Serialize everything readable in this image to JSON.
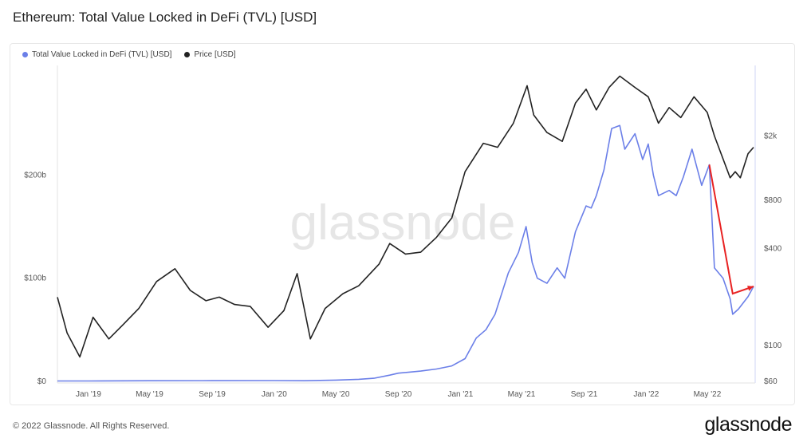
{
  "header": {
    "title": "Ethereum: Total Value Locked in DeFi (TVL) [USD]"
  },
  "footer": {
    "copyright": "© 2022 Glassnode. All Rights Reserved.",
    "logo": "glassnode"
  },
  "watermark": "glassnode",
  "colors": {
    "tvl": "#6b7fe8",
    "price": "#222222",
    "annotation": "#e82222",
    "watermark": "#e6e6e6"
  },
  "chart_data": {
    "type": "line",
    "title": "Ethereum: Total Value Locked in DeFi (TVL) [USD]",
    "legend_position": "top-left",
    "grid": false,
    "x_ticks": [
      "Jan '19",
      "May '19",
      "Sep '19",
      "Jan '20",
      "May '20",
      "Sep '20",
      "Jan '21",
      "May '21",
      "Sep '21",
      "Jan '22",
      "May '22"
    ],
    "x_range": [
      "2018-11-01",
      "2022-07-31"
    ],
    "y_left": {
      "scale": "linear",
      "range": [
        0,
        300
      ],
      "ticks": [
        {
          "v": 0,
          "label": "$0"
        },
        {
          "v": 100,
          "label": "$100b"
        },
        {
          "v": 200,
          "label": "$200b"
        }
      ]
    },
    "y_right": {
      "scale": "log",
      "range": [
        60,
        5000
      ],
      "ticks": [
        {
          "v": 60,
          "label": "$60"
        },
        {
          "v": 100,
          "label": "$100"
        },
        {
          "v": 400,
          "label": "$400"
        },
        {
          "v": 800,
          "label": "$800"
        },
        {
          "v": 2000,
          "label": "$2k"
        }
      ]
    },
    "series": [
      {
        "name": "Total Value Locked in DeFi (TVL) [USD]",
        "axis": "left",
        "points": [
          [
            "2018-11-01",
            0.4
          ],
          [
            "2019-01-01",
            0.4
          ],
          [
            "2019-05-01",
            0.6
          ],
          [
            "2019-09-01",
            0.7
          ],
          [
            "2020-01-01",
            0.8
          ],
          [
            "2020-03-01",
            0.6
          ],
          [
            "2020-05-01",
            1.2
          ],
          [
            "2020-06-15",
            2
          ],
          [
            "2020-07-15",
            3
          ],
          [
            "2020-08-15",
            6
          ],
          [
            "2020-09-01",
            8
          ],
          [
            "2020-10-15",
            10
          ],
          [
            "2020-11-15",
            12
          ],
          [
            "2020-12-15",
            15
          ],
          [
            "2021-01-10",
            22
          ],
          [
            "2021-02-01",
            42
          ],
          [
            "2021-02-20",
            50
          ],
          [
            "2021-03-10",
            65
          ],
          [
            "2021-04-05",
            105
          ],
          [
            "2021-04-25",
            125
          ],
          [
            "2021-05-10",
            150
          ],
          [
            "2021-05-22",
            115
          ],
          [
            "2021-06-01",
            100
          ],
          [
            "2021-06-20",
            95
          ],
          [
            "2021-07-10",
            110
          ],
          [
            "2021-07-25",
            100
          ],
          [
            "2021-08-15",
            145
          ],
          [
            "2021-09-05",
            170
          ],
          [
            "2021-09-15",
            168
          ],
          [
            "2021-09-25",
            180
          ],
          [
            "2021-10-10",
            205
          ],
          [
            "2021-10-25",
            245
          ],
          [
            "2021-11-10",
            248
          ],
          [
            "2021-11-20",
            225
          ],
          [
            "2021-12-10",
            240
          ],
          [
            "2021-12-25",
            215
          ],
          [
            "2022-01-05",
            230
          ],
          [
            "2022-01-15",
            200
          ],
          [
            "2022-01-25",
            180
          ],
          [
            "2022-02-15",
            185
          ],
          [
            "2022-03-01",
            180
          ],
          [
            "2022-03-15",
            198
          ],
          [
            "2022-04-01",
            225
          ],
          [
            "2022-04-20",
            190
          ],
          [
            "2022-05-05",
            210
          ],
          [
            "2022-05-10",
            160
          ],
          [
            "2022-05-15",
            110
          ],
          [
            "2022-06-01",
            100
          ],
          [
            "2022-06-15",
            80
          ],
          [
            "2022-06-20",
            65
          ],
          [
            "2022-07-01",
            70
          ],
          [
            "2022-07-20",
            82
          ],
          [
            "2022-07-31",
            92
          ]
        ]
      },
      {
        "name": "Price [USD]",
        "axis": "right",
        "points": [
          [
            "2018-11-01",
            200
          ],
          [
            "2018-11-20",
            120
          ],
          [
            "2018-12-15",
            85
          ],
          [
            "2019-01-10",
            150
          ],
          [
            "2019-02-10",
            110
          ],
          [
            "2019-03-10",
            135
          ],
          [
            "2019-04-10",
            170
          ],
          [
            "2019-05-15",
            250
          ],
          [
            "2019-06-20",
            300
          ],
          [
            "2019-07-20",
            220
          ],
          [
            "2019-08-20",
            190
          ],
          [
            "2019-09-15",
            200
          ],
          [
            "2019-10-15",
            180
          ],
          [
            "2019-11-15",
            175
          ],
          [
            "2019-12-20",
            130
          ],
          [
            "2020-01-20",
            165
          ],
          [
            "2020-02-15",
            280
          ],
          [
            "2020-03-12",
            110
          ],
          [
            "2020-04-10",
            170
          ],
          [
            "2020-05-15",
            210
          ],
          [
            "2020-06-15",
            235
          ],
          [
            "2020-07-25",
            320
          ],
          [
            "2020-08-15",
            430
          ],
          [
            "2020-09-15",
            370
          ],
          [
            "2020-10-15",
            380
          ],
          [
            "2020-11-15",
            470
          ],
          [
            "2020-12-15",
            620
          ],
          [
            "2021-01-10",
            1200
          ],
          [
            "2021-02-15",
            1800
          ],
          [
            "2021-03-15",
            1700
          ],
          [
            "2021-04-15",
            2400
          ],
          [
            "2021-05-12",
            4100
          ],
          [
            "2021-05-25",
            2700
          ],
          [
            "2021-06-20",
            2100
          ],
          [
            "2021-07-20",
            1850
          ],
          [
            "2021-08-15",
            3200
          ],
          [
            "2021-09-05",
            3900
          ],
          [
            "2021-09-25",
            2900
          ],
          [
            "2021-10-20",
            4000
          ],
          [
            "2021-11-10",
            4700
          ],
          [
            "2021-12-10",
            4000
          ],
          [
            "2022-01-05",
            3500
          ],
          [
            "2022-01-25",
            2400
          ],
          [
            "2022-02-15",
            3000
          ],
          [
            "2022-03-10",
            2600
          ],
          [
            "2022-04-05",
            3500
          ],
          [
            "2022-05-01",
            2800
          ],
          [
            "2022-05-15",
            2000
          ],
          [
            "2022-06-15",
            1100
          ],
          [
            "2022-06-25",
            1200
          ],
          [
            "2022-07-05",
            1100
          ],
          [
            "2022-07-20",
            1550
          ],
          [
            "2022-07-31",
            1700
          ]
        ]
      }
    ],
    "annotations": [
      {
        "type": "arrow",
        "color": "#e82222",
        "points": [
          [
            "2022-05-05",
            210
          ],
          [
            "2022-06-20",
            85
          ],
          [
            "2022-07-31",
            92
          ]
        ]
      }
    ]
  }
}
